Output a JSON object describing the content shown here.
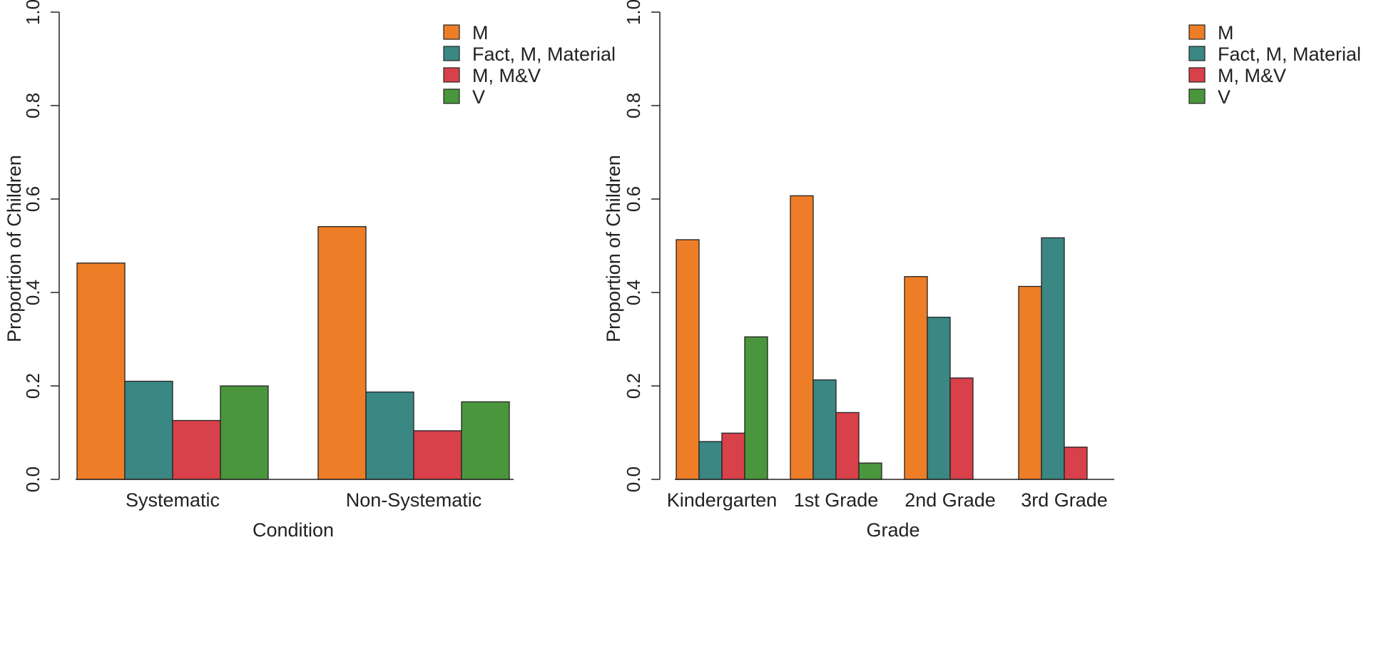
{
  "chart_data": [
    {
      "type": "bar",
      "title": "",
      "xlabel": "Condition",
      "ylabel": "Proportion of Children",
      "ylim": [
        0,
        1
      ],
      "yticks": [
        "0.0",
        "0.2",
        "0.4",
        "0.6",
        "0.8",
        "1.0"
      ],
      "categories": [
        "Systematic",
        "Non-Systematic"
      ],
      "series": [
        {
          "name": "M",
          "color": "#ED7D26",
          "values": [
            0.463,
            0.541
          ]
        },
        {
          "name": "Fact, M, Material",
          "color": "#3A8783",
          "values": [
            0.21,
            0.187
          ]
        },
        {
          "name": "M, M&V",
          "color": "#D8404A",
          "values": [
            0.126,
            0.104
          ]
        },
        {
          "name": "V",
          "color": "#4A963C",
          "values": [
            0.2,
            0.166
          ]
        }
      ],
      "legend": "top-right"
    },
    {
      "type": "bar",
      "title": "",
      "xlabel": "Grade",
      "ylabel": "Proportion of Children",
      "ylim": [
        0,
        1
      ],
      "yticks": [
        "0.0",
        "0.2",
        "0.4",
        "0.6",
        "0.8",
        "1.0"
      ],
      "categories": [
        "Kindergarten",
        "1st Grade",
        "2nd Grade",
        "3rd Grade"
      ],
      "series": [
        {
          "name": "M",
          "color": "#ED7D26",
          "values": [
            0.513,
            0.607,
            0.434,
            0.413
          ]
        },
        {
          "name": "Fact, M, Material",
          "color": "#3A8783",
          "values": [
            0.081,
            0.213,
            0.347,
            0.517
          ]
        },
        {
          "name": "M, M&V",
          "color": "#D8404A",
          "values": [
            0.099,
            0.143,
            0.217,
            0.069
          ]
        },
        {
          "name": "V",
          "color": "#4A963C",
          "values": [
            0.305,
            0.035,
            0.0,
            0.0
          ]
        }
      ],
      "legend": "top-right"
    }
  ]
}
